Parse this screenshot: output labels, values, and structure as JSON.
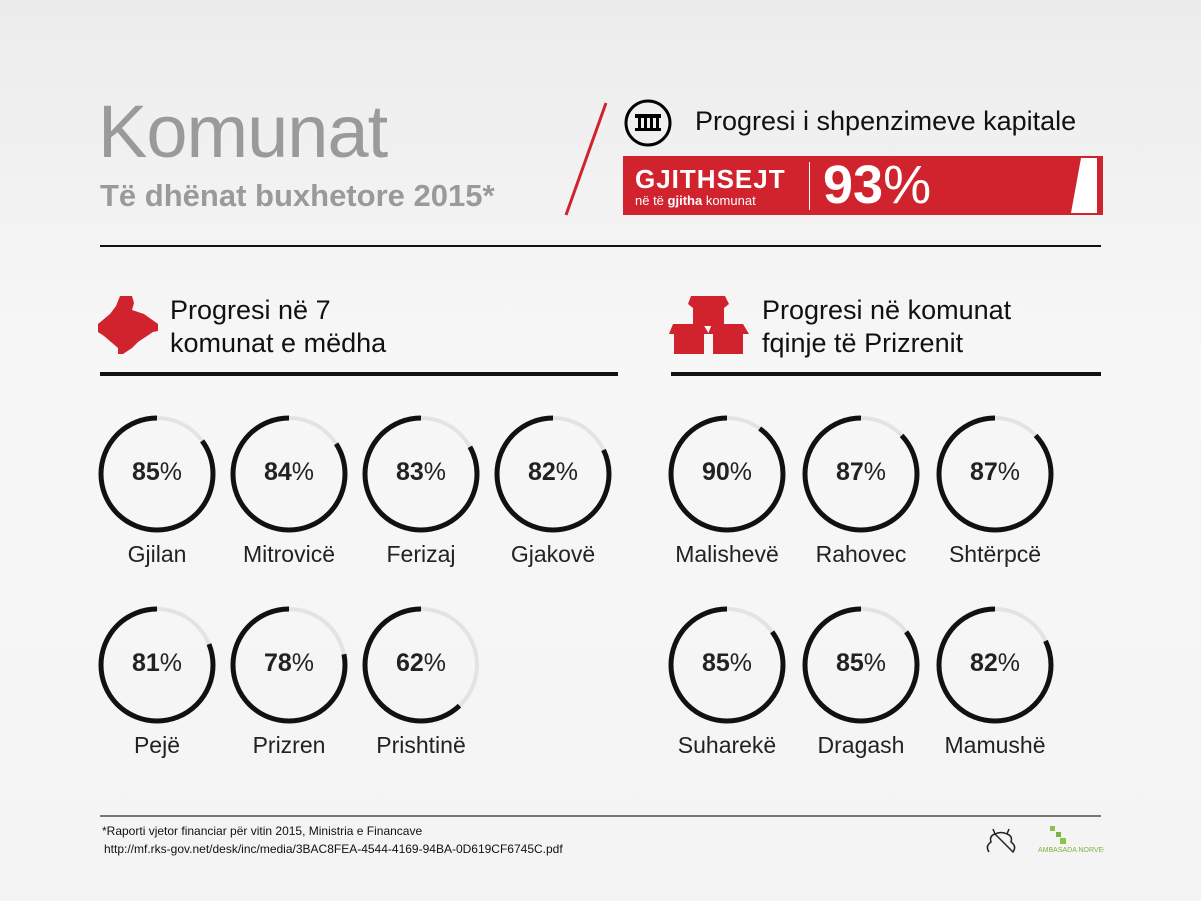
{
  "header": {
    "title": "Komunat",
    "subtitle": "Të dhënat buxhetore 2015*"
  },
  "capital": {
    "title": "Progresi i shpenzimeve kapitale",
    "icon": "institution-icon",
    "total_label": "GJITHSEJT",
    "total_sub_pre": "në të ",
    "total_sub_bold": "gjitha",
    "total_sub_post": " komunat",
    "total_value": "93",
    "percent_sign": "%"
  },
  "sections": {
    "left_title_1": "Progresi në 7",
    "left_title_2": "komunat e mëdha",
    "right_title_1": "Progresi në komunat",
    "right_title_2": "fqinje të Prizrenit"
  },
  "colors": {
    "accent": "#d0232d",
    "ring": "#111111",
    "track": "#e3e3e5"
  },
  "chart_data": [
    {
      "type": "donut",
      "title": "Progresi në 7 komunat e mëdha",
      "categories": [
        "Gjilan",
        "Mitrovicë",
        "Ferizaj",
        "Gjakovë",
        "Pejë",
        "Prizren",
        "Prishtinë"
      ],
      "values": [
        85,
        84,
        83,
        82,
        81,
        78,
        62
      ],
      "unit": "%"
    },
    {
      "type": "donut",
      "title": "Progresi në komunat fqinje të Prizrenit",
      "categories": [
        "Malishevë",
        "Rahovec",
        "Shtërpcë",
        "Suharekë",
        "Dragash",
        "Mamushë"
      ],
      "values": [
        90,
        87,
        87,
        85,
        85,
        82
      ],
      "unit": "%"
    }
  ],
  "footer": {
    "line1": "*Raporti vjetor financiar për vitin 2015, Ministria e Financave",
    "line2": "http://mf.rks-gov.net/desk/inc/media/3BAC8FEA-4544-4169-94BA-0D619CF6745C.pdf",
    "logo1": "Olympic Cat",
    "logo2": "Ambasada Norvegjisë"
  }
}
